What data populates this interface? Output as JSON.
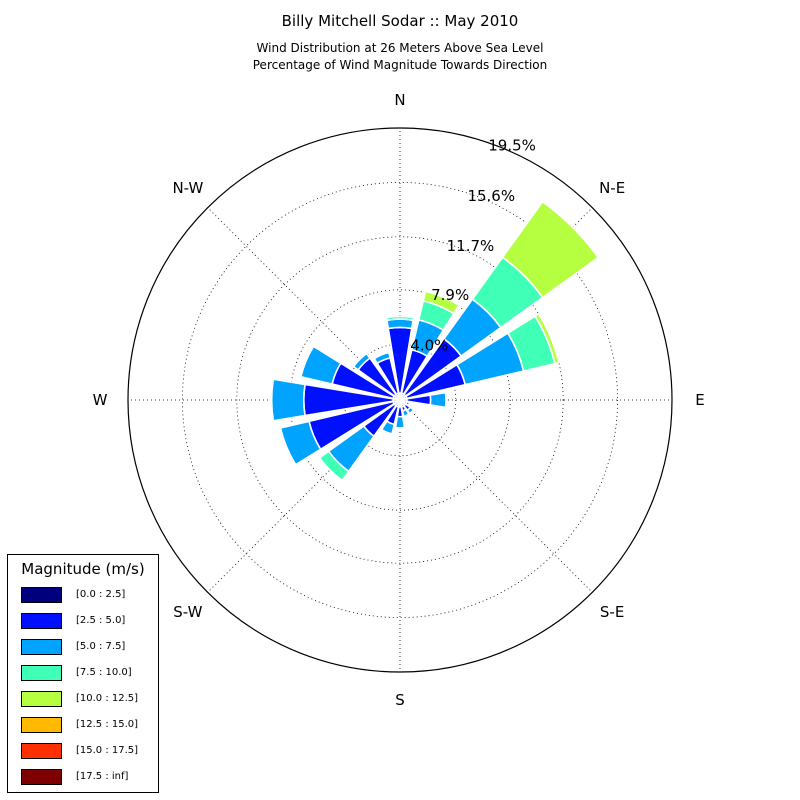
{
  "title": "Billy Mitchell Sodar :: May 2010",
  "subtitle_1": "Wind Distribution at 26 Meters Above Sea Level",
  "subtitle_2": "Percentage of Wind Magnitude Towards Direction",
  "legend": {
    "title": "Magnitude (m/s)",
    "items": [
      {
        "label": "[0.0 : 2.5]",
        "color": "#00007f"
      },
      {
        "label": "[2.5 : 5.0]",
        "color": "#0010ff"
      },
      {
        "label": "[5.0 : 7.5]",
        "color": "#00a4ff"
      },
      {
        "label": "[7.5 : 10.0]",
        "color": "#40ffb6"
      },
      {
        "label": "[10.0 : 12.5]",
        "color": "#b6ff40"
      },
      {
        "label": "[12.5 : 15.0]",
        "color": "#ffb900"
      },
      {
        "label": "[15.0 : 17.5]",
        "color": "#ff3000"
      },
      {
        "label": "[17.5 : inf]",
        "color": "#7f0000"
      }
    ]
  },
  "chart_data": {
    "type": "windrose",
    "directions": [
      "N",
      "N-E",
      "E",
      "S-E",
      "S",
      "S-W",
      "W",
      "N-W"
    ],
    "radial_ticks": [
      "4.0%",
      "7.9%",
      "11.7%",
      "15.6%",
      "19.5%"
    ],
    "radial_max": 19.5,
    "bins": [
      "[0.0 : 2.5]",
      "[2.5 : 5.0]",
      "[5.0 : 7.5]",
      "[7.5 : 10.0]",
      "[10.0 : 12.5]",
      "[12.5 : 15.0]",
      "[15.0 : 17.5]",
      "[17.5 : inf]"
    ],
    "sectors": [
      {
        "direction_deg": 0,
        "cumulative": [
          0.5,
          5.2,
          5.8,
          6.0,
          6.0
        ]
      },
      {
        "direction_deg": 22.5,
        "cumulative": [
          0.5,
          3.7,
          5.9,
          7.3,
          8.0
        ]
      },
      {
        "direction_deg": 45,
        "cumulative": [
          0.5,
          5.4,
          8.9,
          12.6,
          17.5
        ]
      },
      {
        "direction_deg": 67.5,
        "cumulative": [
          0.5,
          4.8,
          9.1,
          11.4,
          11.7
        ]
      },
      {
        "direction_deg": 90,
        "cumulative": [
          0.5,
          2.2,
          3.3,
          3.3,
          3.3
        ]
      },
      {
        "direction_deg": 112.5,
        "cumulative": [
          0.5,
          0.7,
          0.7,
          0.7,
          0.7
        ]
      },
      {
        "direction_deg": 135,
        "cumulative": [
          0.5,
          0.9,
          1.2,
          1.2,
          1.2
        ]
      },
      {
        "direction_deg": 157.5,
        "cumulative": [
          0.5,
          0.8,
          1.2,
          1.2,
          1.2
        ]
      },
      {
        "direction_deg": 180,
        "cumulative": [
          0.5,
          1.2,
          2.0,
          2.1,
          2.1
        ]
      },
      {
        "direction_deg": 202.5,
        "cumulative": [
          0.5,
          1.8,
          2.5,
          2.6,
          2.6
        ]
      },
      {
        "direction_deg": 225,
        "cumulative": [
          0.5,
          3.2,
          6.3,
          7.1,
          7.1
        ]
      },
      {
        "direction_deg": 247.5,
        "cumulative": [
          0.5,
          6.7,
          8.8,
          8.8,
          8.8
        ]
      },
      {
        "direction_deg": 270,
        "cumulative": [
          0.5,
          6.9,
          9.2,
          9.2,
          9.2
        ]
      },
      {
        "direction_deg": 292.5,
        "cumulative": [
          0.5,
          5.0,
          7.3,
          7.4,
          7.4
        ]
      },
      {
        "direction_deg": 315,
        "cumulative": [
          0.5,
          3.7,
          4.1,
          4.1,
          4.1
        ]
      },
      {
        "direction_deg": 337.5,
        "cumulative": [
          0.5,
          3.1,
          3.5,
          3.5,
          3.5
        ]
      }
    ]
  }
}
